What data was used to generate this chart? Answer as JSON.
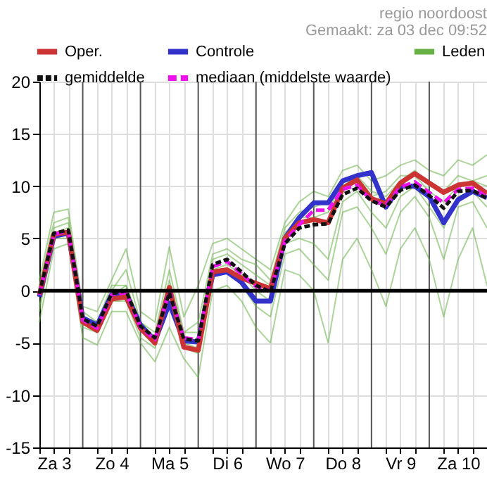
{
  "chart_data": {
    "type": "line",
    "annotations": [
      "regio noordoost",
      "Gemaakt: za 03 dec 09:52"
    ],
    "x": [
      "--12-03T06:00",
      "--12-03T12:00",
      "--12-03T18:00",
      "--12-04T00:00",
      "--12-04T06:00",
      "--12-04T12:00",
      "--12-04T18:00",
      "--12-05T00:00",
      "--12-05T06:00",
      "--12-05T12:00",
      "--12-05T18:00",
      "--12-06T00:00",
      "--12-06T06:00",
      "--12-06T12:00",
      "--12-06T18:00",
      "--12-07T00:00",
      "--12-07T06:00",
      "--12-07T12:00",
      "--12-07T18:00",
      "--12-08T00:00",
      "--12-08T06:00",
      "--12-08T12:00",
      "--12-08T18:00",
      "--12-09T00:00",
      "--12-09T06:00",
      "--12-09T12:00",
      "--12-09T18:00",
      "--12-10T00:00",
      "--12-10T06:00",
      "--12-10T12:00",
      "--12-10T18:00",
      "--12-11T00:00"
    ],
    "xlim": [
      "--12-03T06:00",
      "--12-11T00:00"
    ],
    "xticks": [
      {
        "value": "--12-03T06:00",
        "label": null
      },
      {
        "value": "--12-03T12:00",
        "label": "Za 3"
      },
      {
        "value": "--12-03T18:00",
        "label": null
      },
      {
        "value": "--12-04T06:00",
        "label": null
      },
      {
        "value": "--12-04T12:00",
        "label": "Zo 4"
      },
      {
        "value": "--12-04T18:00",
        "label": null
      },
      {
        "value": "--12-05T06:00",
        "label": null
      },
      {
        "value": "--12-05T12:00",
        "label": "Ma 5"
      },
      {
        "value": "--12-05T18:00",
        "label": null
      },
      {
        "value": "--12-06T06:00",
        "label": null
      },
      {
        "value": "--12-06T12:00",
        "label": "Di 6"
      },
      {
        "value": "--12-06T18:00",
        "label": null
      },
      {
        "value": "--12-07T06:00",
        "label": null
      },
      {
        "value": "--12-07T12:00",
        "label": "Wo 7"
      },
      {
        "value": "--12-07T18:00",
        "label": null
      },
      {
        "value": "--12-08T06:00",
        "label": null
      },
      {
        "value": "--12-08T12:00",
        "label": "Do 8"
      },
      {
        "value": "--12-08T18:00",
        "label": null
      },
      {
        "value": "--12-09T06:00",
        "label": null
      },
      {
        "value": "--12-09T12:00",
        "label": "Vr 9"
      },
      {
        "value": "--12-09T18:00",
        "label": null
      },
      {
        "value": "--12-10T06:00",
        "label": null
      },
      {
        "value": "--12-10T12:00",
        "label": "Za 10"
      },
      {
        "value": "--12-10T18:00",
        "label": null
      }
    ],
    "ylim": [
      -15,
      20
    ],
    "yticks": [
      -15,
      -10,
      -5,
      0,
      5,
      10,
      15,
      20
    ],
    "grid": true,
    "legend": "top",
    "marker": "none",
    "ref_lines": [
      {
        "axis": "x",
        "value": "--12-04T00:00",
        "color": "#555555"
      },
      {
        "axis": "x",
        "value": "--12-05T00:00",
        "color": "#555555"
      },
      {
        "axis": "x",
        "value": "--12-06T00:00",
        "color": "#555555"
      },
      {
        "axis": "x",
        "value": "--12-07T00:00",
        "color": "#555555"
      },
      {
        "axis": "x",
        "value": "--12-08T00:00",
        "color": "#555555"
      },
      {
        "axis": "x",
        "value": "--12-09T00:00",
        "color": "#555555"
      },
      {
        "axis": "x",
        "value": "--12-10T00:00",
        "color": "#555555"
      },
      {
        "axis": "y",
        "value": 0,
        "color": "#000000"
      }
    ],
    "series": [
      {
        "name": "Oper.",
        "color": "#cc3333",
        "line_style": "solid",
        "values": [
          -0.4,
          5.4,
          5.6,
          -3.0,
          -3.8,
          -0.8,
          -0.6,
          -3.6,
          -5.0,
          0.3,
          -5.4,
          -5.7,
          1.8,
          2.0,
          1.2,
          0.7,
          0.2,
          5.0,
          6.5,
          6.8,
          6.5,
          9.8,
          10.6,
          8.8,
          8.3,
          10.3,
          11.2,
          10.3,
          9.4,
          10.1,
          10.3,
          9.3
        ]
      },
      {
        "name": "Controle",
        "color": "#3333cc",
        "line_style": "solid",
        "values": [
          -0.6,
          5.2,
          5.5,
          -2.6,
          -3.3,
          -0.4,
          -0.3,
          -3.3,
          -4.8,
          -1.2,
          -4.8,
          -4.9,
          1.5,
          1.8,
          0.8,
          -1.0,
          -1.0,
          5.0,
          7.0,
          8.4,
          8.4,
          10.5,
          11.0,
          11.3,
          8.0,
          10.0,
          10.0,
          9.0,
          6.5,
          8.7,
          9.5,
          8.9
        ]
      },
      {
        "name": "Leden",
        "color": "#66b044",
        "line_style": "solid",
        "values": [
          1.0,
          7.5,
          7.8,
          -1.5,
          -2.0,
          1.0,
          4.0,
          -2.0,
          -3.0,
          4.2,
          -2.5,
          0.5,
          4.5,
          5.0,
          4.0,
          3.0,
          2.0,
          6.5,
          8.5,
          9.5,
          9.0,
          11.5,
          12.0,
          10.5,
          11.0,
          12.0,
          12.5,
          11.5,
          11.0,
          12.5,
          12.0,
          13.0
        ]
      },
      {
        "color": "#66b044",
        "line_style": "solid",
        "values": [
          -3.0,
          4.0,
          4.5,
          -4.5,
          -5.2,
          -2.0,
          -2.0,
          -5.0,
          -6.8,
          -3.5,
          -6.5,
          -8.3,
          0.0,
          0.5,
          -1.0,
          -3.5,
          -5.0,
          2.0,
          1.5,
          0.0,
          -5.0,
          3.0,
          5.0,
          2.0,
          -1.5,
          4.0,
          6.0,
          3.0,
          -2.5,
          3.0,
          6.0,
          0.5
        ]
      },
      {
        "color": "#66b044",
        "line_style": "solid",
        "values": [
          0.5,
          6.5,
          7.0,
          -2.0,
          -3.0,
          0.5,
          0.5,
          -3.0,
          -4.0,
          2.0,
          -4.0,
          -3.0,
          3.5,
          4.0,
          3.0,
          2.5,
          1.0,
          6.0,
          7.5,
          8.0,
          8.5,
          10.0,
          11.0,
          9.5,
          9.0,
          10.5,
          11.5,
          10.0,
          9.5,
          11.0,
          10.5,
          10.0
        ]
      },
      {
        "color": "#66b044",
        "line_style": "solid",
        "values": [
          -1.5,
          5.0,
          5.0,
          -3.5,
          -4.0,
          -1.0,
          -1.0,
          -4.5,
          -5.5,
          -1.0,
          -5.5,
          -6.0,
          1.5,
          2.0,
          0.5,
          -1.5,
          -2.5,
          3.5,
          4.0,
          2.5,
          1.0,
          7.5,
          8.0,
          6.0,
          3.5,
          7.5,
          9.0,
          7.0,
          3.0,
          8.0,
          8.5,
          6.0
        ]
      },
      {
        "color": "#66b044",
        "line_style": "solid",
        "values": [
          0.0,
          6.0,
          6.5,
          -2.5,
          -3.0,
          0.0,
          2.0,
          -3.0,
          -4.5,
          1.0,
          -4.0,
          -4.0,
          3.0,
          3.5,
          2.5,
          1.5,
          0.5,
          5.5,
          7.0,
          7.0,
          7.5,
          10.5,
          10.5,
          9.0,
          9.5,
          11.0,
          11.0,
          9.5,
          8.5,
          10.0,
          10.5,
          11.0
        ]
      },
      {
        "color": "#66b044",
        "line_style": "solid",
        "values": [
          -2.0,
          5.5,
          6.0,
          -3.0,
          -3.5,
          -0.5,
          0.5,
          -3.5,
          -5.0,
          0.5,
          -5.0,
          -5.5,
          2.0,
          2.5,
          1.5,
          0.0,
          -1.0,
          4.5,
          5.0,
          4.5,
          3.0,
          8.5,
          9.5,
          7.5,
          6.0,
          9.0,
          10.0,
          8.0,
          6.0,
          9.0,
          9.5,
          8.0
        ]
      },
      {
        "name": "gemiddelde",
        "color": "#111111",
        "line_style": "dotted",
        "values": [
          -0.3,
          5.5,
          5.8,
          -2.7,
          -3.4,
          -0.3,
          0.0,
          -3.4,
          -4.5,
          -0.2,
          -4.6,
          -4.8,
          2.5,
          3.0,
          1.8,
          0.5,
          -0.1,
          4.5,
          6.0,
          6.3,
          6.4,
          9.2,
          9.8,
          8.6,
          8.0,
          9.6,
          10.1,
          9.1,
          7.9,
          9.5,
          9.6,
          8.8
        ]
      },
      {
        "name": "mediaan (middelste waarde)",
        "color": "#ee11ee",
        "line_style": "dashed",
        "values": [
          -0.4,
          5.4,
          5.7,
          -2.8,
          -3.6,
          -0.4,
          -0.2,
          -3.5,
          -4.7,
          0.0,
          -4.5,
          -4.7,
          2.3,
          2.8,
          1.6,
          0.4,
          0.0,
          4.8,
          6.3,
          7.7,
          7.7,
          9.7,
          10.1,
          8.6,
          8.2,
          9.9,
          10.4,
          9.4,
          8.4,
          9.7,
          9.8,
          9.0
        ]
      }
    ]
  }
}
